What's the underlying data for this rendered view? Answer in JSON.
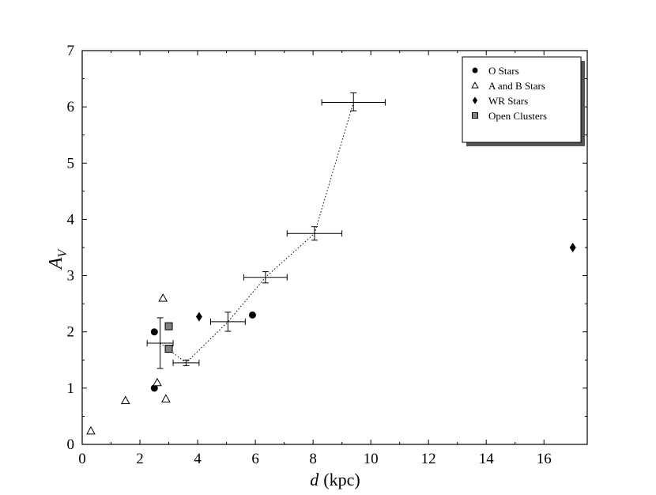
{
  "chart_data": {
    "type": "scatter",
    "title": "",
    "xlabel_var": "d",
    "xlabel_unit": "(kpc)",
    "ylabel_main": "A",
    "ylabel_sub": "V",
    "xlim": [
      0,
      17.5
    ],
    "ylim": [
      0,
      7
    ],
    "xticks": [
      0,
      2,
      4,
      6,
      8,
      10,
      12,
      14,
      16
    ],
    "xtick_labels": [
      "0",
      "2",
      "4",
      "6",
      "8",
      "10",
      "12",
      "14",
      "16"
    ],
    "yticks": [
      0,
      1,
      2,
      3,
      4,
      5,
      6,
      7
    ],
    "ytick_labels": [
      "0",
      "1",
      "2",
      "3",
      "4",
      "5",
      "6",
      "7"
    ],
    "grid": false,
    "legend_position": "top-right",
    "series": [
      {
        "name": "O Stars",
        "marker": "circle",
        "color": "#000000",
        "points": [
          {
            "x": 2.5,
            "y": 2.0
          },
          {
            "x": 2.5,
            "y": 1.0
          },
          {
            "x": 5.9,
            "y": 2.3
          }
        ]
      },
      {
        "name": "A and B Stars",
        "marker": "triangle-open",
        "color": "#000000",
        "points": [
          {
            "x": 0.3,
            "y": 0.24
          },
          {
            "x": 1.5,
            "y": 0.78
          },
          {
            "x": 2.6,
            "y": 1.1
          },
          {
            "x": 2.8,
            "y": 2.6
          },
          {
            "x": 2.9,
            "y": 0.81
          }
        ]
      },
      {
        "name": "WR Stars",
        "marker": "diamond",
        "color": "#000000",
        "points": [
          {
            "x": 4.05,
            "y": 2.27
          },
          {
            "x": 17.0,
            "y": 3.5
          }
        ]
      },
      {
        "name": "Open Clusters",
        "marker": "square",
        "color": "#808080",
        "points": [
          {
            "x": 3.0,
            "y": 2.1
          },
          {
            "x": 3.0,
            "y": 1.7
          }
        ]
      }
    ],
    "binned": {
      "line_style": "dotted",
      "points": [
        {
          "x": 2.7,
          "y": 1.8,
          "xlo": 2.25,
          "xhi": 3.15,
          "ylo": 1.35,
          "yhi": 2.25
        },
        {
          "x": 3.6,
          "y": 1.45,
          "xlo": 3.15,
          "xhi": 4.05,
          "ylo": 1.4,
          "yhi": 1.5
        },
        {
          "x": 5.05,
          "y": 2.18,
          "xlo": 4.45,
          "xhi": 5.65,
          "ylo": 2.01,
          "yhi": 2.35
        },
        {
          "x": 6.35,
          "y": 2.97,
          "xlo": 5.6,
          "xhi": 7.1,
          "ylo": 2.87,
          "yhi": 3.07
        },
        {
          "x": 8.05,
          "y": 3.75,
          "xlo": 7.1,
          "xhi": 9.0,
          "ylo": 3.63,
          "yhi": 3.87
        },
        {
          "x": 9.4,
          "y": 6.08,
          "xlo": 8.3,
          "xhi": 10.5,
          "ylo": 5.93,
          "yhi": 6.25
        }
      ]
    }
  }
}
